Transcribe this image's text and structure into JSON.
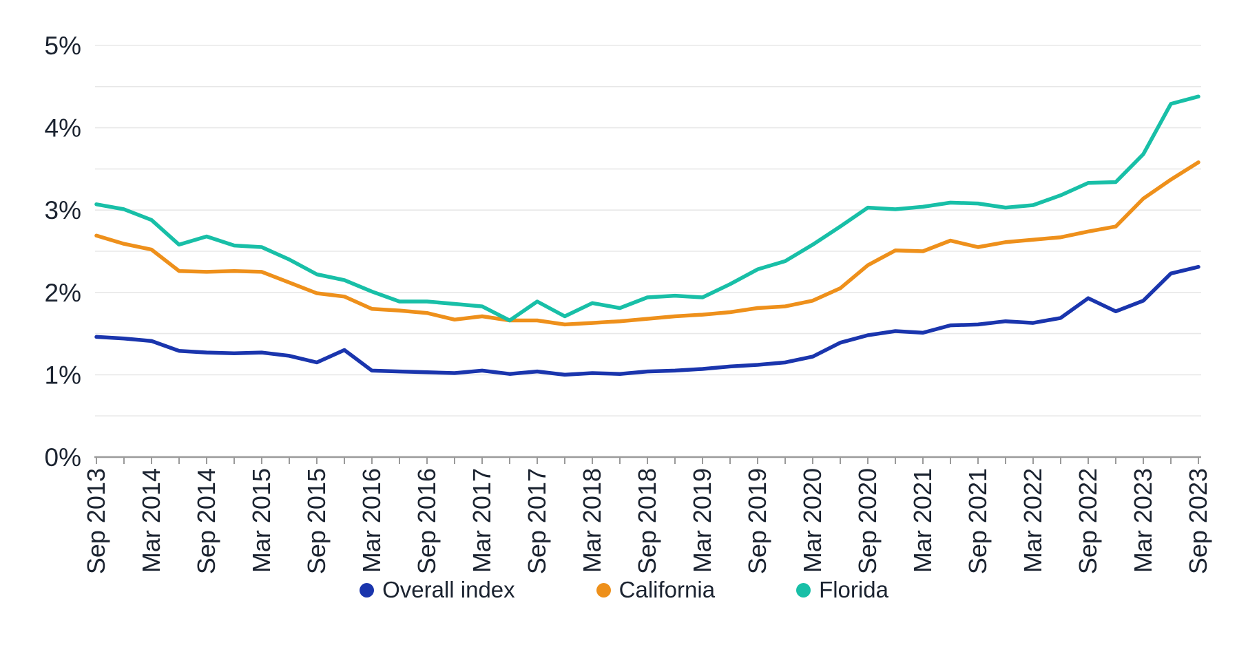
{
  "chart_data": {
    "type": "line",
    "title": "",
    "xlabel": "",
    "ylabel": "",
    "ylim": [
      0,
      5
    ],
    "y_tick_labels": [
      "0%",
      "1%",
      "2%",
      "3%",
      "4%",
      "5%"
    ],
    "y_major_step_pct": 1,
    "y_minor_gridline_step_pct": 0.5,
    "grid": "horizontal-light",
    "legend_position": "bottom-center",
    "x_tick_interval": "quarterly",
    "x_label_every": 2,
    "x_labels_rotated_degrees": -90,
    "x": [
      "Sep 2013",
      "Dec 2013",
      "Mar 2014",
      "Jun 2014",
      "Sep 2014",
      "Dec 2014",
      "Mar 2015",
      "Jun 2015",
      "Sep 2015",
      "Dec 2015",
      "Mar 2016",
      "Jun 2016",
      "Sep 2016",
      "Dec 2016",
      "Mar 2017",
      "Jun 2017",
      "Sep 2017",
      "Dec 2017",
      "Mar 2018",
      "Jun 2018",
      "Sep 2018",
      "Dec 2018",
      "Mar 2019",
      "Jun 2019",
      "Sep 2019",
      "Dec 2019",
      "Mar 2020",
      "Jun 2020",
      "Sep 2020",
      "Dec 2020",
      "Mar 2021",
      "Jun 2021",
      "Sep 2021",
      "Dec 2021",
      "Mar 2022",
      "Jun 2022",
      "Sep 2022",
      "Dec 2022",
      "Mar 2023",
      "Jun 2023",
      "Sep 2023"
    ],
    "shown_x_labels": [
      "Sep 2013",
      "Mar 2014",
      "Sep 2014",
      "Mar 2015",
      "Sep 2015",
      "Mar 2016",
      "Sep 2016",
      "Mar 2017",
      "Sep 2017",
      "Mar 2018",
      "Sep 2018",
      "Mar 2019",
      "Sep 2019",
      "Mar 2020",
      "Sep 2020",
      "Mar 2021",
      "Sep 2021",
      "Mar 2022",
      "Sep 2022",
      "Mar 2023",
      "Sep 2023"
    ],
    "series": [
      {
        "name": "Overall index",
        "color": "#1a35ad",
        "values": [
          1.46,
          1.44,
          1.41,
          1.29,
          1.27,
          1.26,
          1.27,
          1.23,
          1.15,
          1.3,
          1.05,
          1.04,
          1.03,
          1.02,
          1.05,
          1.01,
          1.04,
          1.0,
          1.02,
          1.01,
          1.04,
          1.05,
          1.07,
          1.1,
          1.12,
          1.15,
          1.22,
          1.39,
          1.48,
          1.53,
          1.51,
          1.6,
          1.61,
          1.65,
          1.63,
          1.69,
          1.93,
          1.77,
          1.9,
          2.23,
          2.31
        ]
      },
      {
        "name": "California",
        "color": "#ee901b",
        "values": [
          2.69,
          2.59,
          2.52,
          2.26,
          2.25,
          2.26,
          2.25,
          2.12,
          1.99,
          1.95,
          1.8,
          1.78,
          1.75,
          1.67,
          1.71,
          1.66,
          1.66,
          1.61,
          1.63,
          1.65,
          1.68,
          1.71,
          1.73,
          1.76,
          1.81,
          1.83,
          1.9,
          2.05,
          2.33,
          2.51,
          2.5,
          2.63,
          2.55,
          2.61,
          2.64,
          2.67,
          2.74,
          2.8,
          3.14,
          3.37,
          3.58
        ]
      },
      {
        "name": "Florida",
        "color": "#18bfa7",
        "values": [
          3.07,
          3.01,
          2.88,
          2.58,
          2.68,
          2.57,
          2.55,
          2.4,
          2.22,
          2.15,
          2.01,
          1.89,
          1.89,
          1.86,
          1.83,
          1.66,
          1.89,
          1.71,
          1.87,
          1.81,
          1.94,
          1.96,
          1.94,
          2.1,
          2.28,
          2.38,
          2.58,
          2.8,
          3.03,
          3.01,
          3.04,
          3.09,
          3.08,
          3.03,
          3.06,
          3.18,
          3.33,
          3.34,
          3.68,
          4.29,
          4.38
        ]
      }
    ],
    "style": {
      "gridline_color": "#e8e8e8",
      "axis_color": "#9a9a9a",
      "label_color": "#1b2330",
      "line_width": 5.5,
      "background": "#ffffff"
    }
  }
}
